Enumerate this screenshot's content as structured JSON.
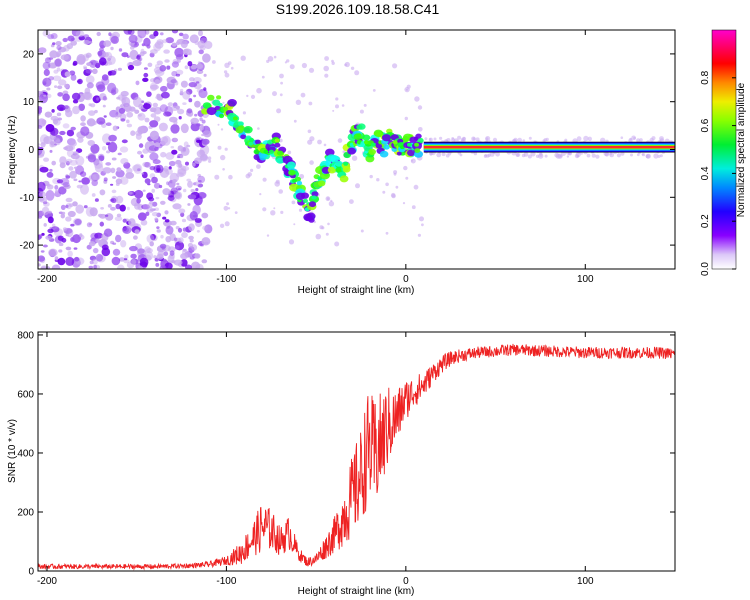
{
  "title": "S199.2026.109.18.58.C41",
  "colors": {
    "snr_line": "#ee2222",
    "ridge_line": "#ff2a2a",
    "scatter_light": "#c9aaf0",
    "scatter_mid": "#9a55ee",
    "scatter_dark": "#6a00e8"
  },
  "chart_data": [
    {
      "type": "heatmap",
      "name": "spectrogram",
      "title": "",
      "xlabel": "Height of straight line (km)",
      "ylabel": "Frequency (Hz)",
      "xlim": [
        -205,
        150
      ],
      "ylim": [
        -25,
        25
      ],
      "x_ticks": [
        -200,
        -100,
        0,
        100
      ],
      "x_tick_labels": [
        "-200",
        "-100",
        "0",
        "100"
      ],
      "y_ticks": [
        -20,
        -10,
        0,
        10,
        20
      ],
      "y_tick_labels": [
        "-20",
        "-10",
        "0",
        "10",
        "20"
      ],
      "colorbar": {
        "label": "Normalized spectral amplitude",
        "range": [
          0,
          1
        ],
        "ticks": [
          0,
          0.2,
          0.4,
          0.6,
          0.8
        ],
        "tick_labels": [
          "0.0",
          "0.2",
          "0.4",
          "0.6",
          "0.8"
        ],
        "colormap": "hue: purple (0) - blue - cyan - green - yellow - red - magenta (1)"
      },
      "ridge": {
        "description": "strong narrow line at ~0 Hz for heights above ~10 km",
        "x": [
          10,
          150
        ],
        "frequency": 0.5,
        "amplitude": 0.95
      },
      "trail": [
        {
          "x": -112,
          "freq": 9.5
        },
        {
          "x": -104,
          "freq": 9
        },
        {
          "x": -97,
          "freq": 8
        },
        {
          "x": -93,
          "freq": 5
        },
        {
          "x": -88,
          "freq": 3
        },
        {
          "x": -84,
          "freq": 1
        },
        {
          "x": -80,
          "freq": -1
        },
        {
          "x": -76,
          "freq": 0
        },
        {
          "x": -72,
          "freq": 1
        },
        {
          "x": -68,
          "freq": -2
        },
        {
          "x": -64,
          "freq": -5
        },
        {
          "x": -60,
          "freq": -8
        },
        {
          "x": -57,
          "freq": -11
        },
        {
          "x": -53,
          "freq": -14
        },
        {
          "x": -50,
          "freq": -7
        },
        {
          "x": -46,
          "freq": -5
        },
        {
          "x": -42,
          "freq": -2
        },
        {
          "x": -38,
          "freq": -4
        },
        {
          "x": -35,
          "freq": -5
        },
        {
          "x": -32,
          "freq": -1
        },
        {
          "x": -28,
          "freq": 3
        },
        {
          "x": -24,
          "freq": 3
        },
        {
          "x": -20,
          "freq": 0
        },
        {
          "x": -16,
          "freq": 2
        },
        {
          "x": -12,
          "freq": 1
        },
        {
          "x": -8,
          "freq": 3
        },
        {
          "x": -4,
          "freq": 0
        },
        {
          "x": 0,
          "freq": 1
        },
        {
          "x": 4,
          "freq": 1
        },
        {
          "x": 8,
          "freq": 1
        }
      ],
      "noise_region": {
        "x": [
          -205,
          -110
        ],
        "freq": [
          -25,
          25
        ]
      }
    },
    {
      "type": "line",
      "name": "snr",
      "title": "",
      "xlabel": "Height of straight line (km)",
      "ylabel": "SNR (10 * v/v)",
      "xlim": [
        -205,
        150
      ],
      "ylim": [
        0,
        810
      ],
      "x_ticks": [
        -200,
        -100,
        0,
        100
      ],
      "x_tick_labels": [
        "-200",
        "-100",
        "0",
        "100"
      ],
      "y_ticks": [
        0,
        200,
        400,
        600,
        800
      ],
      "y_tick_labels": [
        "0",
        "200",
        "400",
        "600",
        "800"
      ],
      "series": [
        {
          "name": "SNR",
          "x": [
            -205,
            -180,
            -160,
            -140,
            -120,
            -110,
            -100,
            -92,
            -85,
            -80,
            -75,
            -70,
            -65,
            -60,
            -55,
            -50,
            -45,
            -40,
            -35,
            -30,
            -25,
            -22,
            -20,
            -18,
            -15,
            -12,
            -10,
            -8,
            -5,
            -2,
            0,
            5,
            10,
            15,
            20,
            25,
            30,
            40,
            50,
            60,
            80,
            100,
            120,
            140,
            150
          ],
          "mean": [
            15,
            15,
            15,
            15,
            18,
            22,
            35,
            60,
            110,
            150,
            140,
            100,
            130,
            60,
            30,
            40,
            80,
            120,
            180,
            250,
            320,
            400,
            420,
            380,
            420,
            460,
            490,
            500,
            520,
            560,
            580,
            610,
            630,
            670,
            700,
            720,
            730,
            740,
            745,
            750,
            745,
            740,
            740,
            740,
            735
          ],
          "noise": [
            8,
            8,
            8,
            8,
            8,
            10,
            15,
            40,
            60,
            90,
            70,
            50,
            60,
            25,
            15,
            20,
            40,
            60,
            100,
            140,
            170,
            190,
            200,
            200,
            180,
            160,
            140,
            120,
            100,
            80,
            70,
            55,
            45,
            35,
            30,
            25,
            22,
            20,
            20,
            20,
            20,
            20,
            20,
            20,
            20
          ]
        }
      ]
    }
  ]
}
